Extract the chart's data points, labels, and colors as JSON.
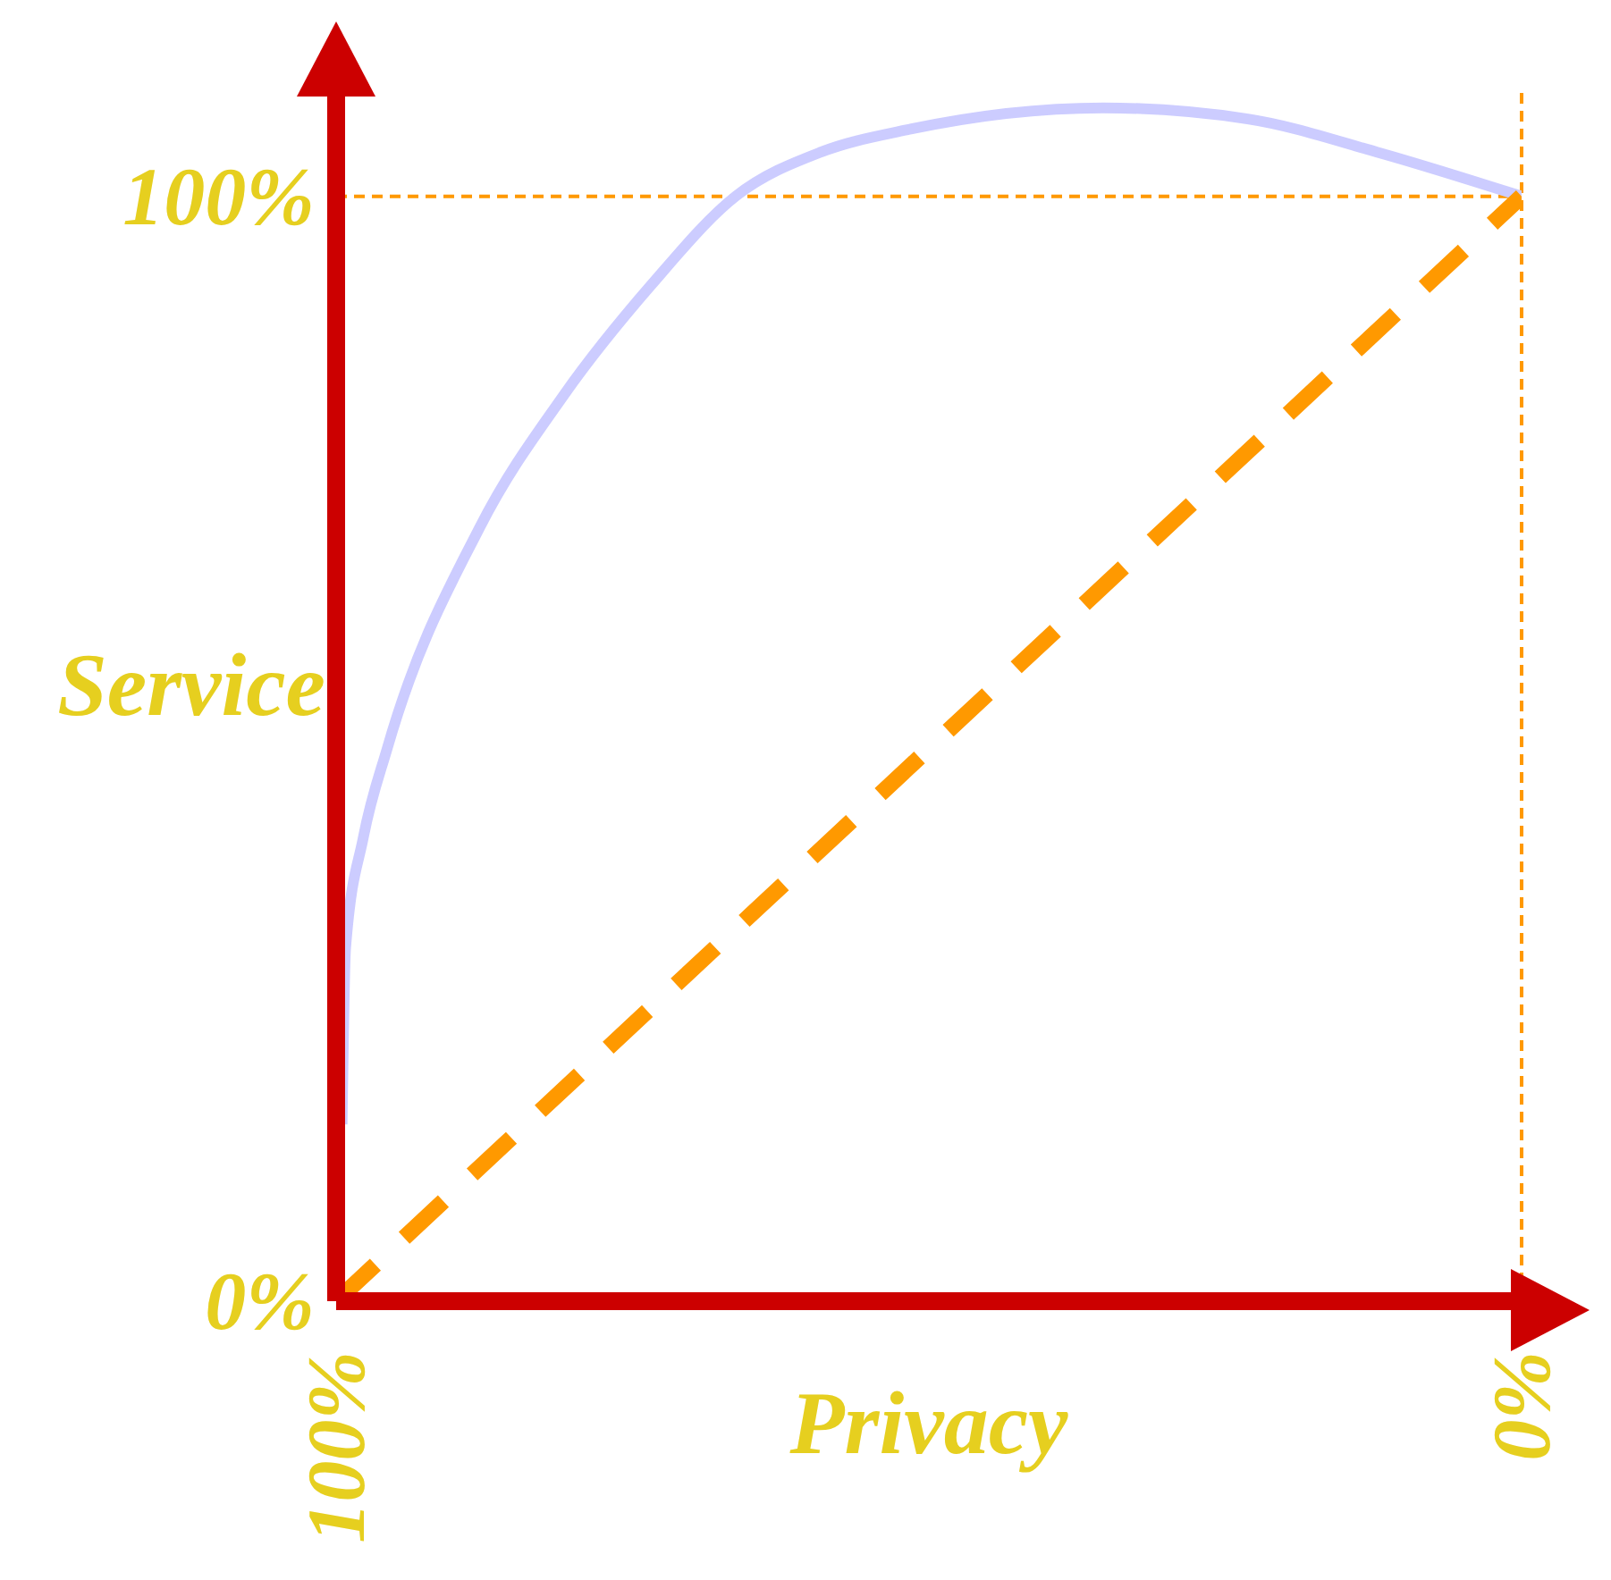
{
  "chart_data": {
    "type": "line",
    "xlabel": "Privacy",
    "ylabel": "Service",
    "xlim": [
      100,
      0
    ],
    "ylim": [
      0,
      110
    ],
    "xticks": [
      {
        "value": 100,
        "label": "100%"
      },
      {
        "value": 0,
        "label": "0%"
      }
    ],
    "yticks": [
      {
        "value": 0,
        "label": "0%"
      },
      {
        "value": 100,
        "label": "100%"
      }
    ],
    "marker": "none",
    "ref_lines": [
      {
        "axis": "y",
        "value": 100,
        "color": "#ff9900",
        "line_style": "dashed"
      },
      {
        "axis": "x",
        "value": 0,
        "color": "#ff9900",
        "line_style": "dashed"
      }
    ],
    "series": [
      {
        "color": "#ccccff",
        "line_style": "solid",
        "x": [
          99.5,
          99.2,
          97.7,
          95.7,
          87.9,
          80.8,
          73.4,
          66.3,
          59.1,
          51.9,
          35.3,
          23.1,
          12.2,
          0
        ],
        "values": [
          16,
          32,
          42,
          50,
          70,
          82,
          92,
          100,
          104,
          106,
          108,
          107,
          104,
          100
        ]
      },
      {
        "color": "#ff9900",
        "line_style": "dashed",
        "x": [
          100,
          0
        ],
        "values": [
          0,
          100
        ]
      }
    ]
  }
}
